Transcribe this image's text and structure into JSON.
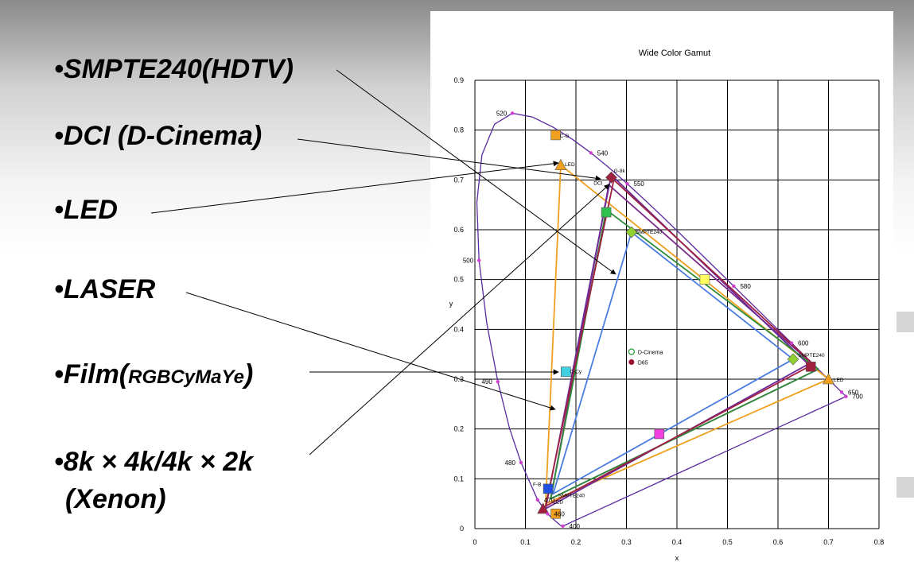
{
  "bullets": {
    "smpte": "•SMPTE240(HDTV)",
    "dci": "•DCI (D-Cinema)",
    "led": "•LED",
    "laser": "•LASER",
    "film_main": "•Film(",
    "film_small": "RGBCyMaYe",
    "film_end": ")",
    "xenon_line1": "•8k × 4k/4k × 2k",
    "xenon_line2": "(Xenon)"
  },
  "chart_data": {
    "type": "scatter",
    "title": "Wide Color Gamut",
    "xlabel": "x",
    "ylabel": "y",
    "xlim": [
      0,
      0.8
    ],
    "ylim": [
      0,
      0.9
    ],
    "xticks": [
      "0",
      "0.1",
      "0.2",
      "0.3",
      "0.4",
      "0.5",
      "0.6",
      "0.7",
      "0.8"
    ],
    "yticks": [
      "0",
      "0.1",
      "0.2",
      "0.3",
      "0.4",
      "0.5",
      "0.6",
      "0.7",
      "0.8",
      "0.9"
    ],
    "grid": true,
    "legend": {
      "placement": "center",
      "entries": [
        {
          "label": "D-Cinema",
          "marker": "circle-open",
          "color": "#2e9b3a"
        },
        {
          "label": "D65",
          "marker": "circle",
          "color": "#9b1030"
        }
      ]
    },
    "locus": {
      "color": "#5a2aa0",
      "points": [
        [
          0.1741,
          0.005
        ],
        [
          0.1738,
          0.0049
        ],
        [
          0.1733,
          0.0048
        ],
        [
          0.1726,
          0.0048
        ],
        [
          0.1714,
          0.0051
        ],
        [
          0.1689,
          0.0069
        ],
        [
          0.1644,
          0.0109
        ],
        [
          0.1566,
          0.0177
        ],
        [
          0.144,
          0.0297
        ],
        [
          0.1241,
          0.0578
        ],
        [
          0.0913,
          0.1327
        ],
        [
          0.0687,
          0.2007
        ],
        [
          0.0454,
          0.295
        ],
        [
          0.0235,
          0.4127
        ],
        [
          0.0082,
          0.5384
        ],
        [
          0.0039,
          0.6548
        ],
        [
          0.0139,
          0.7502
        ],
        [
          0.0389,
          0.812
        ],
        [
          0.0743,
          0.8338
        ],
        [
          0.1142,
          0.8262
        ],
        [
          0.1547,
          0.8059
        ],
        [
          0.1929,
          0.7816
        ],
        [
          0.2296,
          0.7543
        ],
        [
          0.2658,
          0.7243
        ],
        [
          0.3016,
          0.6923
        ],
        [
          0.3373,
          0.6589
        ],
        [
          0.3731,
          0.6245
        ],
        [
          0.4087,
          0.5896
        ],
        [
          0.4441,
          0.5547
        ],
        [
          0.4788,
          0.5202
        ],
        [
          0.5125,
          0.4866
        ],
        [
          0.5448,
          0.4544
        ],
        [
          0.5752,
          0.4242
        ],
        [
          0.6029,
          0.3965
        ],
        [
          0.627,
          0.3725
        ],
        [
          0.6482,
          0.3514
        ],
        [
          0.6658,
          0.334
        ],
        [
          0.6801,
          0.3197
        ],
        [
          0.6915,
          0.3083
        ],
        [
          0.7006,
          0.2993
        ],
        [
          0.7079,
          0.292
        ],
        [
          0.714,
          0.2859
        ],
        [
          0.719,
          0.2809
        ],
        [
          0.723,
          0.277
        ],
        [
          0.726,
          0.274
        ],
        [
          0.7347,
          0.2653
        ]
      ]
    },
    "wavelengths": [
      {
        "label": "520",
        "x": 0.0743,
        "y": 0.8338
      },
      {
        "label": "540",
        "x": 0.2296,
        "y": 0.7543
      },
      {
        "label": "550",
        "x": 0.3016,
        "y": 0.6923
      },
      {
        "label": "500",
        "x": 0.0082,
        "y": 0.5384
      },
      {
        "label": "580",
        "x": 0.5125,
        "y": 0.4866
      },
      {
        "label": "600",
        "x": 0.627,
        "y": 0.3725
      },
      {
        "label": "490",
        "x": 0.0454,
        "y": 0.295
      },
      {
        "label": "650",
        "x": 0.726,
        "y": 0.274
      },
      {
        "label": "700",
        "x": 0.7347,
        "y": 0.2653
      },
      {
        "label": "480",
        "x": 0.0913,
        "y": 0.1327
      },
      {
        "label": "470",
        "x": 0.1241,
        "y": 0.0578
      },
      {
        "label": "460",
        "x": 0.144,
        "y": 0.0297
      },
      {
        "label": "400",
        "x": 0.1741,
        "y": 0.005
      }
    ],
    "series": [
      {
        "name": "SMPTE240",
        "color": "#4a7ce0",
        "points": [
          [
            0.63,
            0.34
          ],
          [
            0.31,
            0.595
          ],
          [
            0.155,
            0.07
          ]
        ]
      },
      {
        "name": "D-Cinema",
        "color": "#7a2a8a",
        "points": [
          [
            0.68,
            0.32
          ],
          [
            0.265,
            0.69
          ],
          [
            0.15,
            0.06
          ]
        ]
      },
      {
        "name": "LED",
        "color": "#f0a020",
        "points": [
          [
            0.7,
            0.3
          ],
          [
            0.17,
            0.73
          ],
          [
            0.14,
            0.05
          ]
        ]
      },
      {
        "name": "LASER",
        "color": "#6a2a9a",
        "points": [
          [
            0.66,
            0.33
          ],
          [
            0.27,
            0.71
          ],
          [
            0.14,
            0.04
          ]
        ]
      },
      {
        "name": "",
        "color": "#2e8b3a",
        "points": [
          [
            0.68,
            0.32
          ],
          [
            0.26,
            0.64
          ],
          [
            0.15,
            0.06
          ]
        ]
      },
      {
        "name": "8k",
        "color": "#a02040",
        "points": [
          [
            0.67,
            0.33
          ],
          [
            0.275,
            0.7
          ],
          [
            0.14,
            0.045
          ]
        ]
      }
    ],
    "markers": [
      {
        "label": "",
        "x": 0.16,
        "y": 0.79,
        "color": "#f0a020",
        "shape": "square"
      },
      {
        "label": "",
        "x": 0.17,
        "y": 0.73,
        "color": "#f0a020",
        "shape": "triangle"
      },
      {
        "label": "",
        "x": 0.26,
        "y": 0.635,
        "color": "#30c050",
        "shape": "square"
      },
      {
        "label": "",
        "x": 0.31,
        "y": 0.595,
        "color": "#90d030",
        "shape": "diamond"
      },
      {
        "label": "",
        "x": 0.455,
        "y": 0.5,
        "color": "#ffff60",
        "shape": "square"
      },
      {
        "label": "",
        "x": 0.18,
        "y": 0.315,
        "color": "#40d0e0",
        "shape": "square"
      },
      {
        "label": "",
        "x": 0.365,
        "y": 0.19,
        "color": "#f040e0",
        "shape": "square"
      },
      {
        "label": "",
        "x": 0.63,
        "y": 0.34,
        "color": "#90d030",
        "shape": "diamond"
      },
      {
        "label": "",
        "x": 0.665,
        "y": 0.325,
        "color": "#a02040",
        "shape": "square"
      },
      {
        "label": "",
        "x": 0.7,
        "y": 0.3,
        "color": "#f0a020",
        "shape": "triangle"
      },
      {
        "label": "",
        "x": 0.145,
        "y": 0.08,
        "color": "#2050e0",
        "shape": "square"
      },
      {
        "label": "",
        "x": 0.16,
        "y": 0.03,
        "color": "#f0a020",
        "shape": "square"
      },
      {
        "label": "",
        "x": 0.135,
        "y": 0.04,
        "color": "#a02040",
        "shape": "triangle"
      },
      {
        "label": "",
        "x": 0.27,
        "y": 0.705,
        "color": "#a02040",
        "shape": "diamond"
      }
    ],
    "point_labels": [
      {
        "text": "C-G",
        "x": 0.168,
        "y": 0.785
      },
      {
        "text": "LED",
        "x": 0.178,
        "y": 0.728
      },
      {
        "text": "G-8k",
        "x": 0.275,
        "y": 0.715
      },
      {
        "text": "DCI",
        "x": 0.235,
        "y": 0.69
      },
      {
        "text": "SMPTE240",
        "x": 0.318,
        "y": 0.592
      },
      {
        "text": "C-Cy",
        "x": 0.188,
        "y": 0.312
      },
      {
        "text": "SMPTE240",
        "x": 0.64,
        "y": 0.345
      },
      {
        "text": "F-B",
        "x": 0.115,
        "y": 0.085
      },
      {
        "text": "SMPTE240",
        "x": 0.165,
        "y": 0.063
      },
      {
        "text": "LED",
        "x": 0.155,
        "y": 0.05
      },
      {
        "text": "LED",
        "x": 0.71,
        "y": 0.295
      }
    ]
  }
}
